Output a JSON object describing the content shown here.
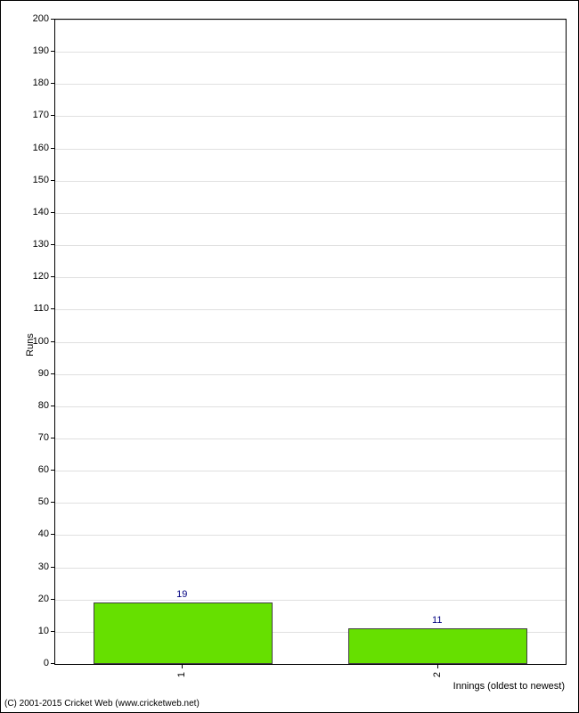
{
  "chart": {
    "type": "bar",
    "ylabel": "Runs",
    "xlabel": "Innings (oldest to newest)",
    "ylim": [
      0,
      200
    ],
    "ytick_step": 10,
    "background_color": "#ffffff",
    "grid_color": "#e0e0e0",
    "border_color": "#000000",
    "categories": [
      "1",
      "2"
    ],
    "values": [
      19,
      11
    ],
    "bar_color": "#66e000",
    "bar_border_color": "#404040",
    "value_label_color": "#000080",
    "label_fontsize": 11,
    "bars": [
      {
        "x": "1",
        "value": 19,
        "label": "19"
      },
      {
        "x": "2",
        "value": 11,
        "label": "11"
      }
    ],
    "yticks": [
      0,
      10,
      20,
      30,
      40,
      50,
      60,
      70,
      80,
      90,
      100,
      110,
      120,
      130,
      140,
      150,
      160,
      170,
      180,
      190,
      200
    ]
  },
  "copyright": "(C) 2001-2015 Cricket Web (www.cricketweb.net)"
}
